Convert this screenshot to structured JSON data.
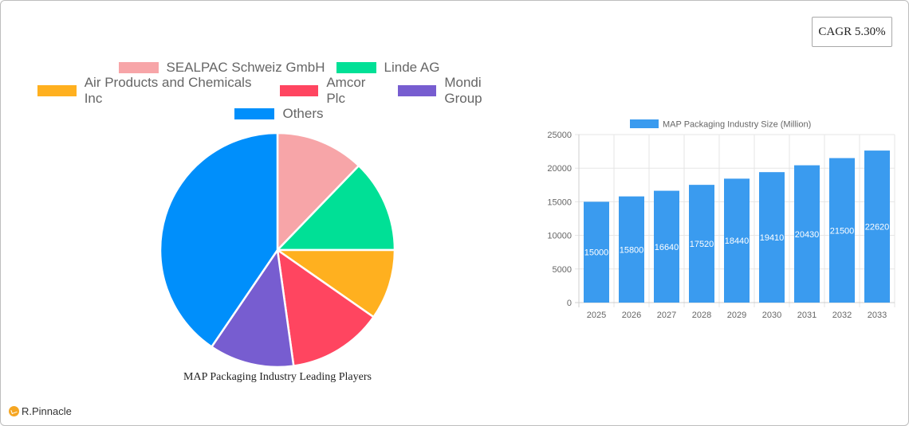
{
  "cagr_badge": {
    "label": "CAGR 5.30%"
  },
  "brand": {
    "name": "R.Pinnacle",
    "icon": "pinnacle-logo-icon"
  },
  "colors": {
    "sealpac": "#f7a5a8",
    "linde": "#00e096",
    "air_products": "#ffb01f",
    "amcor": "#ff4560",
    "mondi": "#775dd0",
    "others": "#008ffb",
    "bar": "#3a9bef"
  },
  "chart_data": [
    {
      "type": "pie",
      "title": "MAP Packaging Industry Leading Players",
      "legend_position": "top",
      "categories": [
        "SEALPAC Schweiz GmbH",
        "Linde AG",
        "Air Products and Chemicals Inc",
        "Amcor Plc",
        "Mondi Group",
        "Others"
      ],
      "values": [
        12.2,
        12.8,
        9.7,
        13.1,
        11.7,
        40.5
      ],
      "colors": [
        "#f7a5a8",
        "#00e096",
        "#ffb01f",
        "#ff4560",
        "#775dd0",
        "#008ffb"
      ]
    },
    {
      "type": "bar",
      "title": "",
      "legend": [
        "MAP Packaging Industry Size (Million)"
      ],
      "legend_position": "top",
      "categories": [
        "2025",
        "2026",
        "2027",
        "2028",
        "2029",
        "2030",
        "2031",
        "2032",
        "2033"
      ],
      "series": [
        {
          "name": "MAP Packaging Industry Size (Million)",
          "values": [
            15000,
            15800,
            16640,
            17520,
            18440,
            19410,
            20430,
            21500,
            22620
          ]
        }
      ],
      "xlabel": "",
      "ylabel": "",
      "ylim": [
        0,
        25000
      ],
      "yticks": [
        0,
        5000,
        10000,
        15000,
        20000,
        25000
      ],
      "grid": true,
      "data_labels": true
    }
  ]
}
